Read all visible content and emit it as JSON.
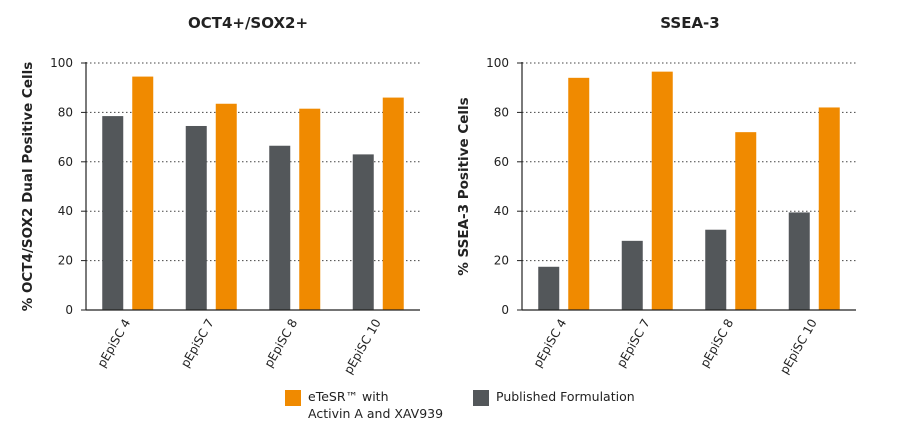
{
  "colors": {
    "orange": "#F08A00",
    "gray": "#53575A",
    "axis": "#222222",
    "grid": "#444444"
  },
  "legend": [
    {
      "label": "eTeSR™ with\nActivin A and XAV939",
      "color": "#F08A00"
    },
    {
      "label": "Published Formulation",
      "color": "#53575A"
    }
  ],
  "chart_data": [
    {
      "type": "bar",
      "title": "OCT4+/SOX2+",
      "xlabel": "",
      "ylabel": "% OCT4/SOX2 Dual Positive Cells",
      "ylim": [
        0,
        100
      ],
      "yticks": [
        0,
        20,
        40,
        60,
        80,
        100
      ],
      "grid": "horizontal dotted",
      "categories": [
        "pEpiSC 4",
        "pEpiSC 7",
        "pEpiSC 8",
        "pEpiSC 10"
      ],
      "series": [
        {
          "name": "Published Formulation",
          "color": "#53575A",
          "values": [
            78.5,
            74.5,
            66.5,
            63
          ]
        },
        {
          "name": "eTeSR™ with Activin A and XAV939",
          "color": "#F08A00",
          "values": [
            94.5,
            83.5,
            81.5,
            86
          ]
        }
      ]
    },
    {
      "type": "bar",
      "title": "SSEA-3",
      "xlabel": "",
      "ylabel": "% SSEA-3 Positive Cells",
      "ylim": [
        0,
        100
      ],
      "yticks": [
        0,
        20,
        40,
        60,
        80,
        100
      ],
      "grid": "horizontal dotted",
      "categories": [
        "pEpiSC 4",
        "pEpiSC 7",
        "pEpiSC 8",
        "pEpiSC 10"
      ],
      "series": [
        {
          "name": "Published Formulation",
          "color": "#53575A",
          "values": [
            17.5,
            28,
            32.5,
            39.5
          ]
        },
        {
          "name": "eTeSR™ with Activin A and XAV939",
          "color": "#F08A00",
          "values": [
            94,
            96.5,
            72,
            82
          ]
        }
      ]
    }
  ]
}
